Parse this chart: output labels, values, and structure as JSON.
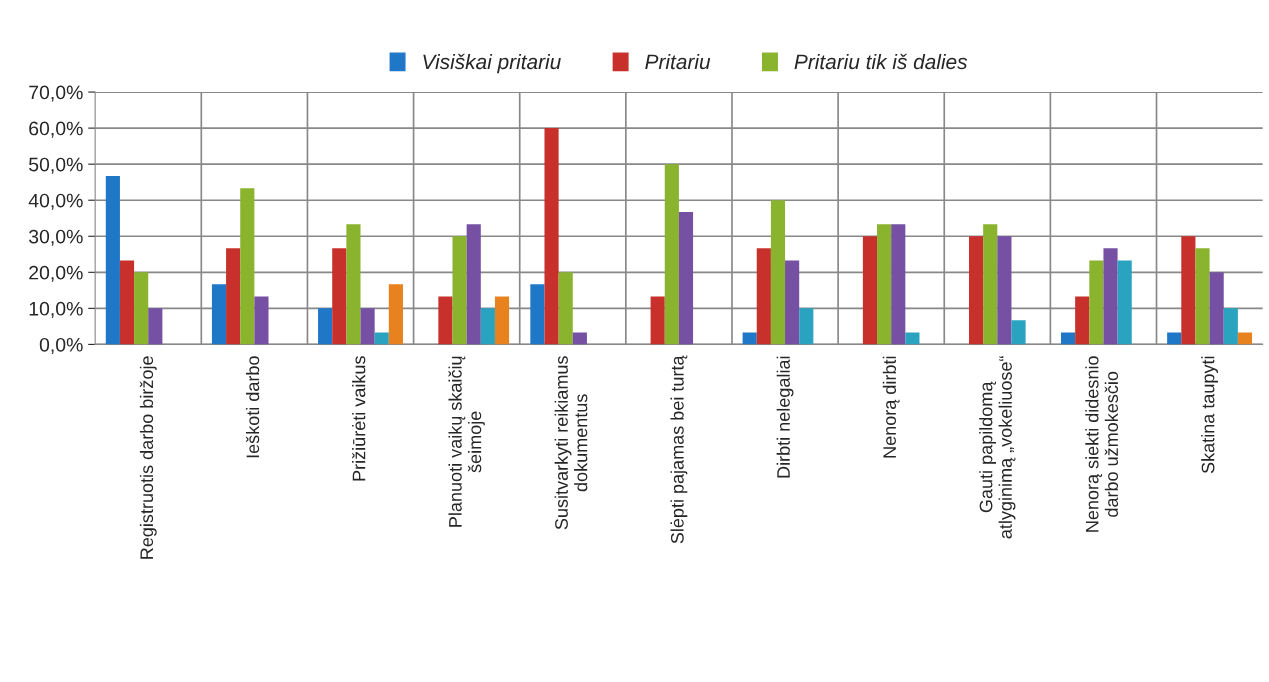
{
  "chart_data": {
    "type": "bar",
    "categories": [
      "Registruotis darbo biržoje",
      "Ieškoti darbo",
      "Prižiūrėti vaikus",
      "Planuoti vaikų skaičių\nšeimoje",
      "Susitvarkyti reikiamus\ndokumentus",
      "Slėpti pajamas bei turtą",
      "Dirbti nelegaliai",
      "Nenorą dirbti",
      "Gauti papildomą\natlyginimą „vokeliuose“",
      "Nenorą siekti didesnio\ndarbo užmokesčio",
      "Skatina taupyti"
    ],
    "series": [
      {
        "name": "Visiškai pritariu",
        "color": "#1f77c8",
        "values": [
          46.7,
          16.7,
          10,
          null,
          16.7,
          null,
          3.3,
          null,
          null,
          3.3,
          3.3
        ]
      },
      {
        "name": "Pritariu",
        "color": "#c8302c",
        "values": [
          23.3,
          26.7,
          26.7,
          13.3,
          60,
          13.3,
          26.7,
          30,
          30,
          13.3,
          30
        ]
      },
      {
        "name": "Pritariu tik iš dalies",
        "color": "#8ab32e",
        "values": [
          20,
          43.3,
          33.3,
          30,
          20,
          50,
          40,
          33.3,
          33.3,
          23.3,
          26.7
        ]
      },
      {
        "color": "#7550a3",
        "values": [
          10,
          13.3,
          10,
          33.3,
          3.3,
          36.7,
          23.3,
          33.3,
          30,
          26.7,
          20
        ]
      },
      {
        "color": "#2aa3c0",
        "values": [
          null,
          null,
          3.3,
          10,
          null,
          null,
          10,
          3.3,
          6.7,
          23.3,
          10
        ]
      },
      {
        "color": "#e8821e",
        "values": [
          null,
          null,
          16.7,
          13.3,
          null,
          null,
          null,
          null,
          null,
          null,
          3.3
        ]
      }
    ],
    "ylim": [
      0,
      70
    ],
    "yticks": [
      {
        "value": 0,
        "label": "0,0%"
      },
      {
        "value": 10,
        "label": "10,0%"
      },
      {
        "value": 20,
        "label": "20,0%"
      },
      {
        "value": 30,
        "label": "30,0%"
      },
      {
        "value": 40,
        "label": "40,0%"
      },
      {
        "value": 50,
        "label": "50,0%"
      },
      {
        "value": 60,
        "label": "60,0%"
      },
      {
        "value": 70,
        "label": "70,0%"
      }
    ],
    "grid": true,
    "legend": "top"
  }
}
